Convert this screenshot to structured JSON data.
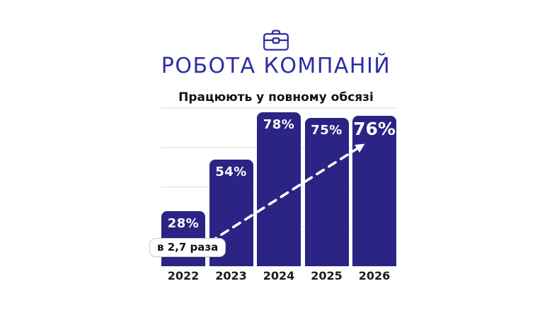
{
  "header": {
    "icon": "briefcase-icon",
    "title": "РОБОТА КОМПАНІЙ",
    "subtitle": "Працюють у повному обсязі"
  },
  "chart_data": {
    "type": "bar",
    "title": "Працюють у повному обсязі",
    "categories": [
      "2022",
      "2023",
      "2024",
      "2025",
      "2026"
    ],
    "values": [
      28,
      54,
      78,
      75,
      76
    ],
    "value_labels": [
      "28%",
      "54%",
      "78%",
      "75%",
      "76%"
    ],
    "unit": "%",
    "xlabel": "",
    "ylabel": "",
    "ylim": [
      0,
      80
    ],
    "gridline_values": [
      20,
      40,
      60,
      80
    ],
    "grid": "horizontal only, light gray, no axis lines, no y tick labels",
    "legend": "none",
    "emphasized_category": "2026",
    "annotation": {
      "label": "в 2,7 раза",
      "type": "dashed-arrow",
      "from_category": "2022",
      "to_category": "2026",
      "arrow_color": "#ffffff"
    }
  },
  "colors": {
    "accent": "#2d2ca4",
    "bar": "#2b2484",
    "bar_label": "#ffffff",
    "gridline": "#ededed",
    "text": "#121212",
    "background": "#ffffff"
  }
}
